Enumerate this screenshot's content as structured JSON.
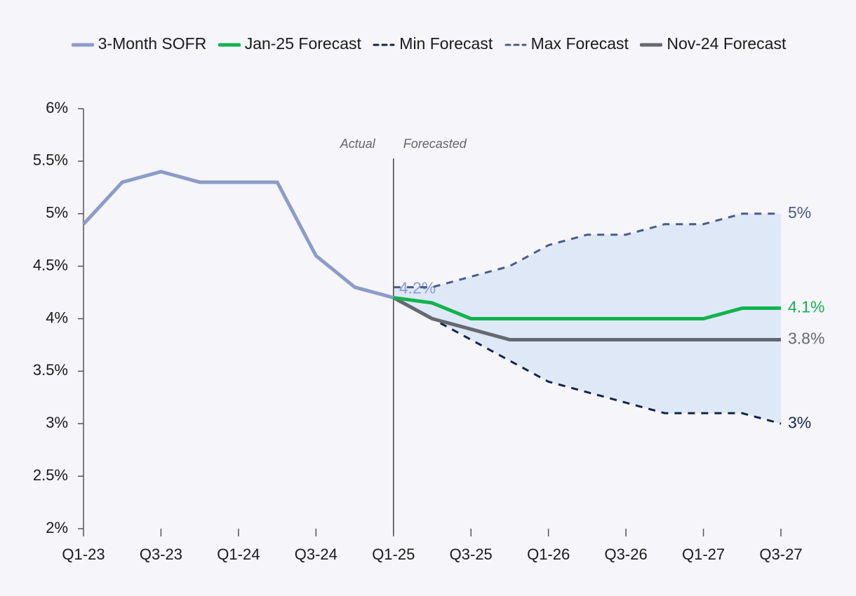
{
  "chart_data": {
    "type": "line",
    "categories": [
      "Q1-23",
      null,
      "Q3-23",
      null,
      "Q1-24",
      null,
      "Q3-24",
      null,
      "Q1-25",
      null,
      "Q3-25",
      null,
      "Q1-26",
      null,
      "Q3-26",
      null,
      "Q1-27",
      null,
      "Q3-27"
    ],
    "series": [
      {
        "name": "3-Month SOFR",
        "color": "#8b9cc8",
        "dash": false,
        "values": [
          4.9,
          5.3,
          5.4,
          5.3,
          5.3,
          5.3,
          4.6,
          4.3,
          4.2,
          null,
          null,
          null,
          null,
          null,
          null,
          null,
          null,
          null,
          null
        ],
        "value_labels": [
          null,
          null,
          null,
          null,
          null,
          null,
          null,
          null,
          "4.2%",
          null,
          null,
          null,
          null,
          null,
          null,
          null,
          null,
          null,
          null
        ]
      },
      {
        "name": "Jan-25 Forecast",
        "color": "#12b34f",
        "dash": false,
        "values": [
          null,
          null,
          null,
          null,
          null,
          null,
          null,
          null,
          4.2,
          4.15,
          4.0,
          4.0,
          4.0,
          4.0,
          4.0,
          4.0,
          4.0,
          4.1,
          4.1
        ],
        "value_labels": [
          null,
          null,
          null,
          null,
          null,
          null,
          null,
          null,
          null,
          null,
          null,
          null,
          null,
          null,
          null,
          null,
          null,
          null,
          "4.1%"
        ]
      },
      {
        "name": "Min Forecast",
        "color": "#13254a",
        "dash": true,
        "values": [
          null,
          null,
          null,
          null,
          null,
          null,
          null,
          null,
          4.2,
          4.0,
          3.8,
          3.6,
          3.4,
          3.3,
          3.2,
          3.1,
          3.1,
          3.1,
          3.0
        ],
        "value_labels": [
          null,
          null,
          null,
          null,
          null,
          null,
          null,
          null,
          null,
          null,
          null,
          null,
          null,
          null,
          null,
          null,
          null,
          null,
          "3%"
        ]
      },
      {
        "name": "Max Forecast",
        "color": "#4a5c8a",
        "dash": true,
        "values": [
          null,
          null,
          null,
          null,
          null,
          null,
          null,
          null,
          4.3,
          4.3,
          4.4,
          4.5,
          4.7,
          4.8,
          4.8,
          4.9,
          4.9,
          5.0,
          5.0
        ],
        "value_labels": [
          null,
          null,
          null,
          null,
          null,
          null,
          null,
          null,
          null,
          null,
          null,
          null,
          null,
          null,
          null,
          null,
          null,
          null,
          "5%"
        ]
      },
      {
        "name": "Nov-24 Forecast",
        "color": "#66696f",
        "dash": false,
        "values": [
          null,
          null,
          null,
          null,
          null,
          null,
          null,
          null,
          4.2,
          4.0,
          3.9,
          3.8,
          3.8,
          3.8,
          3.8,
          3.8,
          3.8,
          3.8,
          3.8
        ],
        "value_labels": [
          null,
          null,
          null,
          null,
          null,
          null,
          null,
          null,
          null,
          null,
          null,
          null,
          null,
          null,
          null,
          null,
          null,
          null,
          "3.8%"
        ]
      }
    ],
    "range_fill": "#dfe8f7",
    "annotations": [
      "Actual",
      "Forecasted"
    ],
    "ylim": [
      2,
      6
    ],
    "yticks": [
      {
        "value": 2,
        "label": "2%"
      },
      {
        "value": 2.5,
        "label": "2.5%"
      },
      {
        "value": 3,
        "label": "3%"
      },
      {
        "value": 3.5,
        "label": "3.5%"
      },
      {
        "value": 4,
        "label": "4%"
      },
      {
        "value": 4.5,
        "label": "4.5%"
      },
      {
        "value": 5,
        "label": "5%"
      },
      {
        "value": 5.5,
        "label": "5.5%"
      },
      {
        "value": 6,
        "label": "6%"
      }
    ],
    "legend": "top",
    "grid": false
  }
}
